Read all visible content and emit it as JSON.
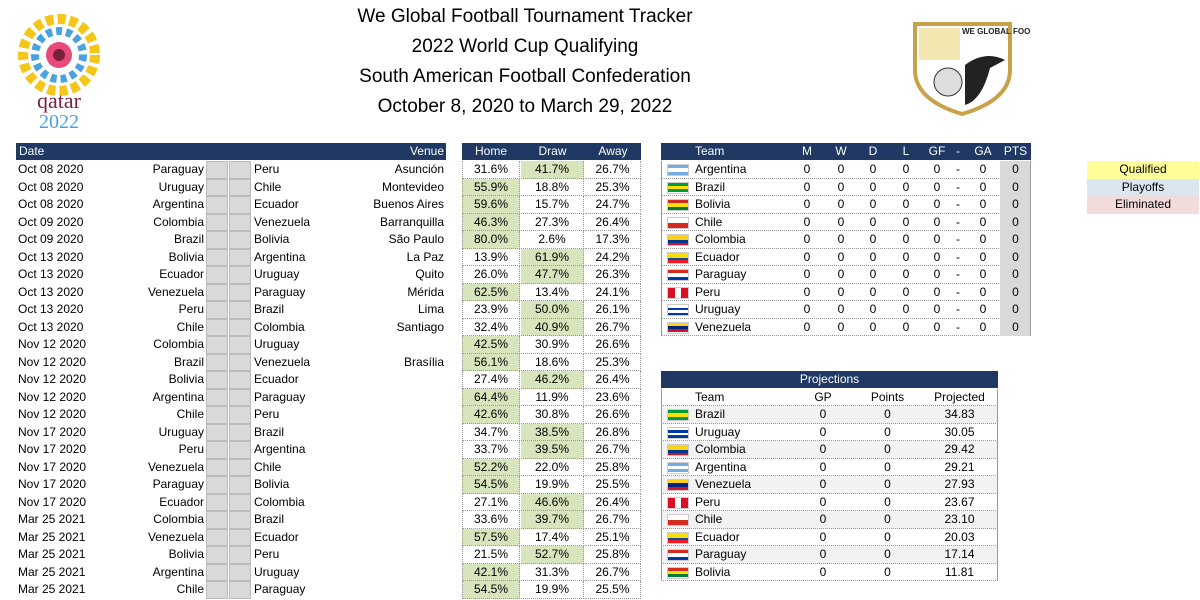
{
  "header": {
    "title_lines": [
      "We Global Football Tournament Tracker",
      "2022 World Cup Qualifying",
      "South American Football Confederation",
      "October 8, 2020 to March 29, 2022"
    ]
  },
  "logos": {
    "left": [
      "qatar",
      "2022"
    ],
    "right": "WE GLOBAL FOOTBALL"
  },
  "matches": {
    "columns": [
      "Date",
      "Venue",
      "Home",
      "Draw",
      "Away"
    ],
    "rows": [
      {
        "date": "Oct 08 2020",
        "home": "Paraguay",
        "away": "Peru",
        "venue": "Asunción",
        "probs": [
          "31.6%",
          "41.7%",
          "26.7%"
        ]
      },
      {
        "date": "Oct 08 2020",
        "home": "Uruguay",
        "away": "Chile",
        "venue": "Montevideo",
        "probs": [
          "55.9%",
          "18.8%",
          "25.3%"
        ]
      },
      {
        "date": "Oct 08 2020",
        "home": "Argentina",
        "away": "Ecuador",
        "venue": "Buenos Aires",
        "probs": [
          "59.6%",
          "15.7%",
          "24.7%"
        ]
      },
      {
        "date": "Oct 09 2020",
        "home": "Colombia",
        "away": "Venezuela",
        "venue": "Barranquilla",
        "probs": [
          "46.3%",
          "27.3%",
          "26.4%"
        ]
      },
      {
        "date": "Oct 09 2020",
        "home": "Brazil",
        "away": "Bolivia",
        "venue": "São Paulo",
        "probs": [
          "80.0%",
          "2.6%",
          "17.3%"
        ]
      },
      {
        "date": "Oct 13 2020",
        "home": "Bolivia",
        "away": "Argentina",
        "venue": "La Paz",
        "probs": [
          "13.9%",
          "61.9%",
          "24.2%"
        ]
      },
      {
        "date": "Oct 13 2020",
        "home": "Ecuador",
        "away": "Uruguay",
        "venue": "Quito",
        "probs": [
          "26.0%",
          "47.7%",
          "26.3%"
        ]
      },
      {
        "date": "Oct 13 2020",
        "home": "Venezuela",
        "away": "Paraguay",
        "venue": "Mérida",
        "probs": [
          "62.5%",
          "13.4%",
          "24.1%"
        ]
      },
      {
        "date": "Oct 13 2020",
        "home": "Peru",
        "away": "Brazil",
        "venue": "Lima",
        "probs": [
          "23.9%",
          "50.0%",
          "26.1%"
        ]
      },
      {
        "date": "Oct 13 2020",
        "home": "Chile",
        "away": "Colombia",
        "venue": "Santiago",
        "probs": [
          "32.4%",
          "40.9%",
          "26.7%"
        ]
      },
      {
        "date": "Nov 12 2020",
        "home": "Colombia",
        "away": "Uruguay",
        "probs": [
          "42.5%",
          "30.9%",
          "26.6%"
        ]
      },
      {
        "date": "Nov 12 2020",
        "home": "Brazil",
        "away": "Venezuela",
        "venue": "Brasília",
        "probs": [
          "56.1%",
          "18.6%",
          "25.3%"
        ]
      },
      {
        "date": "Nov 12 2020",
        "home": "Bolivia",
        "away": "Ecuador",
        "probs": [
          "27.4%",
          "46.2%",
          "26.4%"
        ]
      },
      {
        "date": "Nov 12 2020",
        "home": "Argentina",
        "away": "Paraguay",
        "probs": [
          "64.4%",
          "11.9%",
          "23.6%"
        ]
      },
      {
        "date": "Nov 12 2020",
        "home": "Chile",
        "away": "Peru",
        "probs": [
          "42.6%",
          "30.8%",
          "26.6%"
        ]
      },
      {
        "date": "Nov 17 2020",
        "home": "Uruguay",
        "away": "Brazil",
        "probs": [
          "34.7%",
          "38.5%",
          "26.8%"
        ]
      },
      {
        "date": "Nov 17 2020",
        "home": "Peru",
        "away": "Argentina",
        "probs": [
          "33.7%",
          "39.5%",
          "26.7%"
        ]
      },
      {
        "date": "Nov 17 2020",
        "home": "Venezuela",
        "away": "Chile",
        "probs": [
          "52.2%",
          "22.0%",
          "25.8%"
        ]
      },
      {
        "date": "Nov 17 2020",
        "home": "Paraguay",
        "away": "Bolivia",
        "probs": [
          "54.5%",
          "19.9%",
          "25.5%"
        ]
      },
      {
        "date": "Nov 17 2020",
        "home": "Ecuador",
        "away": "Colombia",
        "probs": [
          "27.1%",
          "46.6%",
          "26.4%"
        ]
      },
      {
        "date": "Mar 25 2021",
        "home": "Colombia",
        "away": "Brazil",
        "probs": [
          "33.6%",
          "39.7%",
          "26.7%"
        ]
      },
      {
        "date": "Mar 25 2021",
        "home": "Venezuela",
        "away": "Ecuador",
        "probs": [
          "57.5%",
          "17.4%",
          "25.1%"
        ]
      },
      {
        "date": "Mar 25 2021",
        "home": "Bolivia",
        "away": "Peru",
        "probs": [
          "21.5%",
          "52.7%",
          "25.8%"
        ]
      },
      {
        "date": "Mar 25 2021",
        "home": "Argentina",
        "away": "Uruguay",
        "probs": [
          "42.1%",
          "31.3%",
          "26.7%"
        ]
      },
      {
        "date": "Mar 25 2021",
        "home": "Chile",
        "away": "Paraguay",
        "probs": [
          "54.5%",
          "19.9%",
          "25.5%"
        ]
      }
    ]
  },
  "standings": {
    "columns": [
      "Team",
      "M",
      "W",
      "D",
      "L",
      "GF",
      "-",
      "GA",
      "PTS"
    ],
    "rows": [
      [
        "Argentina",
        0,
        0,
        0,
        0,
        0,
        "-",
        0,
        0
      ],
      [
        "Brazil",
        0,
        0,
        0,
        0,
        0,
        "-",
        0,
        0
      ],
      [
        "Bolivia",
        0,
        0,
        0,
        0,
        0,
        "-",
        0,
        0
      ],
      [
        "Chile",
        0,
        0,
        0,
        0,
        0,
        "-",
        0,
        0
      ],
      [
        "Colombia",
        0,
        0,
        0,
        0,
        0,
        "-",
        0,
        0
      ],
      [
        "Ecuador",
        0,
        0,
        0,
        0,
        0,
        "-",
        0,
        0
      ],
      [
        "Paraguay",
        0,
        0,
        0,
        0,
        0,
        "-",
        0,
        0
      ],
      [
        "Peru",
        0,
        0,
        0,
        0,
        0,
        "-",
        0,
        0
      ],
      [
        "Uruguay",
        0,
        0,
        0,
        0,
        0,
        "-",
        0,
        0
      ],
      [
        "Venezuela",
        0,
        0,
        0,
        0,
        0,
        "-",
        0,
        0
      ]
    ]
  },
  "projections": {
    "title": "Projections",
    "columns": [
      "Team",
      "GP",
      "Points",
      "Projected"
    ],
    "rows": [
      [
        "Brazil",
        0,
        0,
        "34.83"
      ],
      [
        "Uruguay",
        0,
        0,
        "30.05"
      ],
      [
        "Colombia",
        0,
        0,
        "29.42"
      ],
      [
        "Argentina",
        0,
        0,
        "29.21"
      ],
      [
        "Venezuela",
        0,
        0,
        "27.93"
      ],
      [
        "Peru",
        0,
        0,
        "23.67"
      ],
      [
        "Chile",
        0,
        0,
        "23.10"
      ],
      [
        "Ecuador",
        0,
        0,
        "20.03"
      ],
      [
        "Paraguay",
        0,
        0,
        "17.14"
      ],
      [
        "Bolivia",
        0,
        0,
        "11.81"
      ]
    ]
  },
  "legend": [
    "Qualified",
    "Playoffs",
    "Eliminated"
  ]
}
